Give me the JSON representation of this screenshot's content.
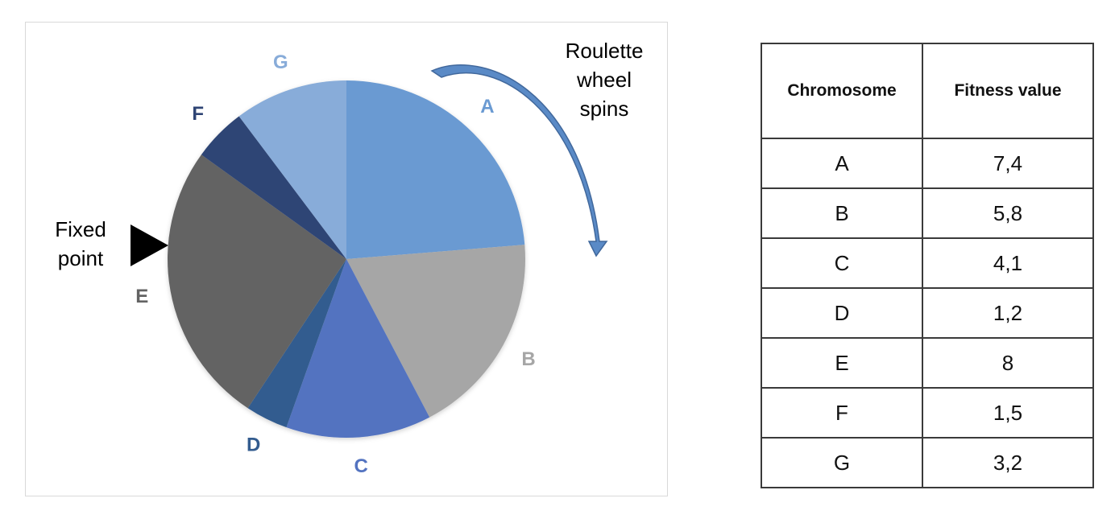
{
  "chart_data": {
    "type": "pie",
    "title": "",
    "categories": [
      "A",
      "B",
      "C",
      "D",
      "E",
      "F",
      "G"
    ],
    "values": [
      7.4,
      5.8,
      4.1,
      1.2,
      8,
      1.5,
      3.2
    ],
    "colors": [
      "#6a9ad2",
      "#a6a6a6",
      "#5373c0",
      "#335c8f",
      "#636363",
      "#2e4474",
      "#88acd9"
    ],
    "label_colors": [
      "#6a9ad2",
      "#a6a6a6",
      "#5373c0",
      "#335c8f",
      "#636363",
      "#2e4474",
      "#88acd9"
    ],
    "start_angle": "12 o'clock",
    "direction": "clockwise",
    "legend": "none"
  },
  "annotations": {
    "spin_label": "Roulette\nwheel\nspins",
    "fixed_point_label": "Fixed\npoint",
    "arrow_color": "#4a7bb7",
    "pointer_color": "#000000"
  },
  "table": {
    "headers": [
      "Chromosome",
      "Fitness value"
    ],
    "rows": [
      [
        "A",
        "7,4"
      ],
      [
        "B",
        "5,8"
      ],
      [
        "C",
        "4,1"
      ],
      [
        "D",
        "1,2"
      ],
      [
        "E",
        "8"
      ],
      [
        "F",
        "1,5"
      ],
      [
        "G",
        "3,2"
      ]
    ]
  }
}
